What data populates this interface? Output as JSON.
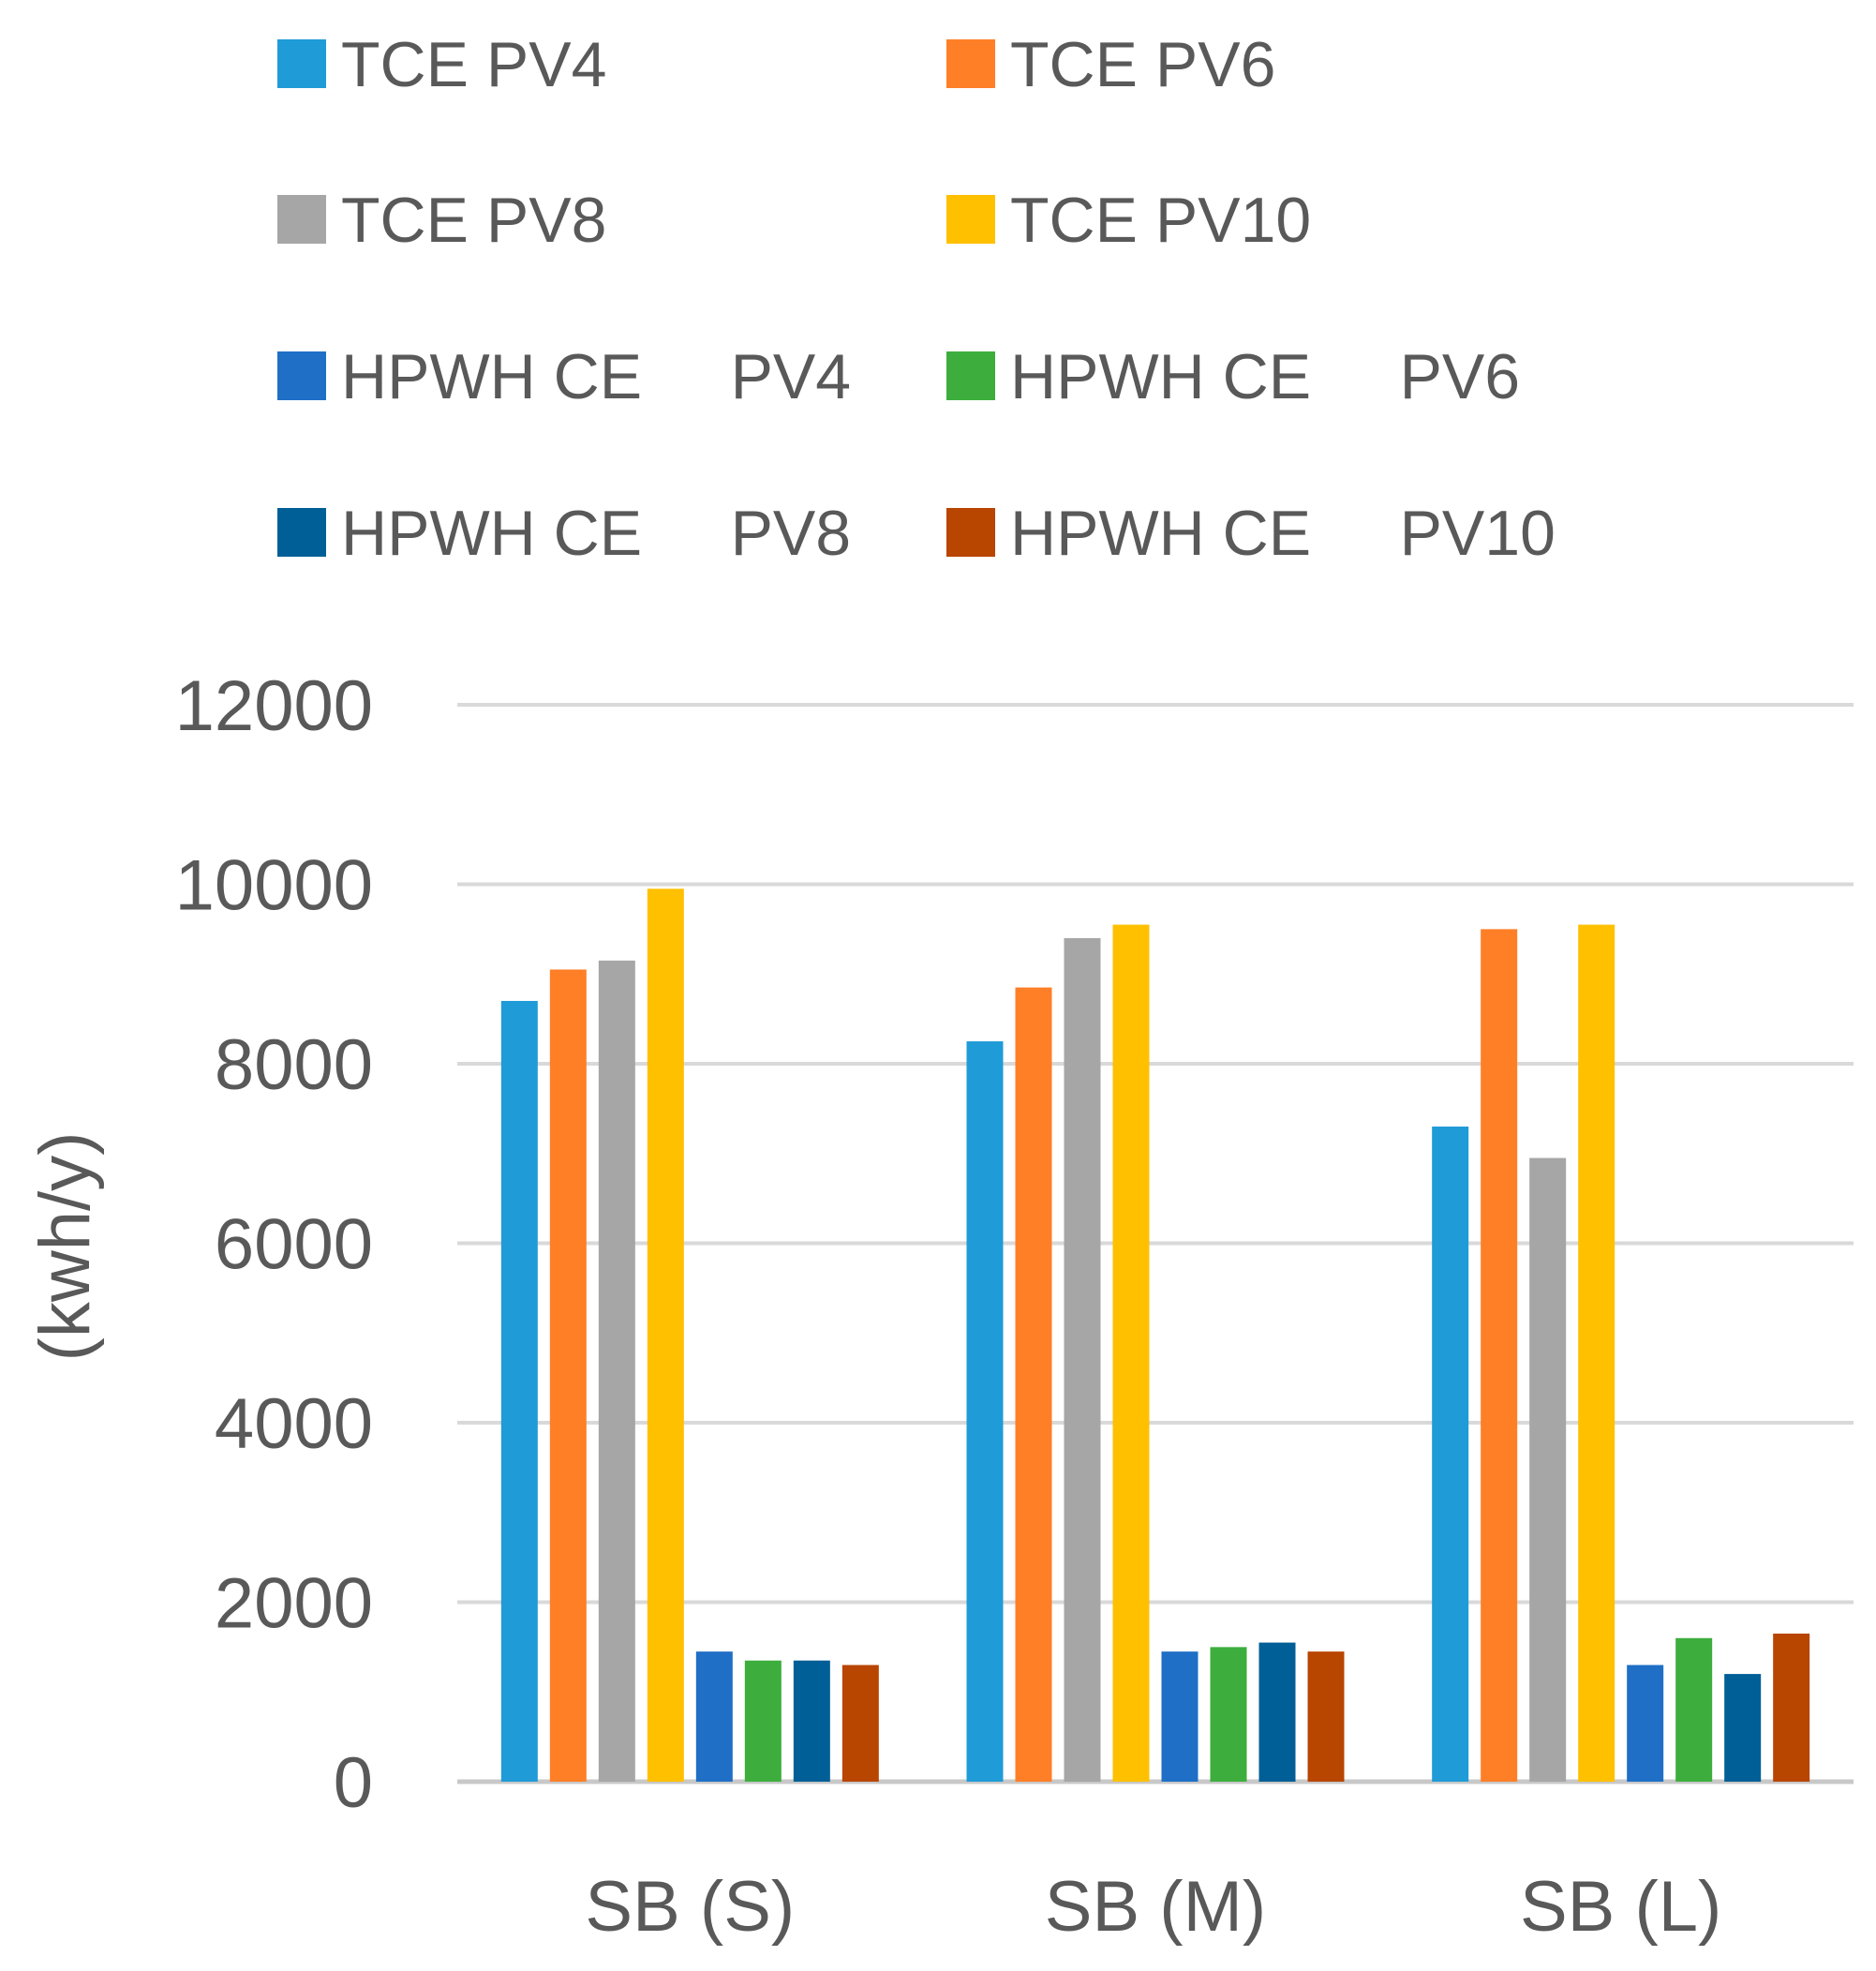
{
  "chart_data": {
    "type": "bar",
    "title": "",
    "xlabel": "",
    "ylabel": "(kwh/y)",
    "ylim": [
      0,
      12000
    ],
    "yticks": [
      "0",
      "2000",
      "4000",
      "6000",
      "8000",
      "10000",
      "12000"
    ],
    "grid": true,
    "legend_position": "top",
    "categories": [
      "SB (S)",
      "SB (M)",
      "SB (L)"
    ],
    "series": [
      {
        "name": "TCE PV4",
        "color": "#1F9BD7",
        "values": [
          8700,
          8250,
          7300
        ]
      },
      {
        "name": "TCE PV6",
        "color": "#FF7F27",
        "values": [
          9050,
          8850,
          9500
        ]
      },
      {
        "name": "TCE PV8",
        "color": "#A6A6A6",
        "values": [
          9150,
          9400,
          6950
        ]
      },
      {
        "name": "TCE PV10",
        "color": "#FFC000",
        "values": [
          9950,
          9550,
          9550
        ]
      },
      {
        "name": "HPWH CE     PV4",
        "color": "#1F6FC6",
        "values": [
          1450,
          1450,
          1300
        ]
      },
      {
        "name": "HPWH CE     PV6",
        "color": "#3DAE3D",
        "values": [
          1350,
          1500,
          1600
        ]
      },
      {
        "name": "HPWH CE     PV8",
        "color": "#005F96",
        "values": [
          1350,
          1550,
          1200
        ]
      },
      {
        "name": "HPWH CE     PV10",
        "color": "#B84500",
        "values": [
          1300,
          1450,
          1650
        ]
      }
    ]
  }
}
